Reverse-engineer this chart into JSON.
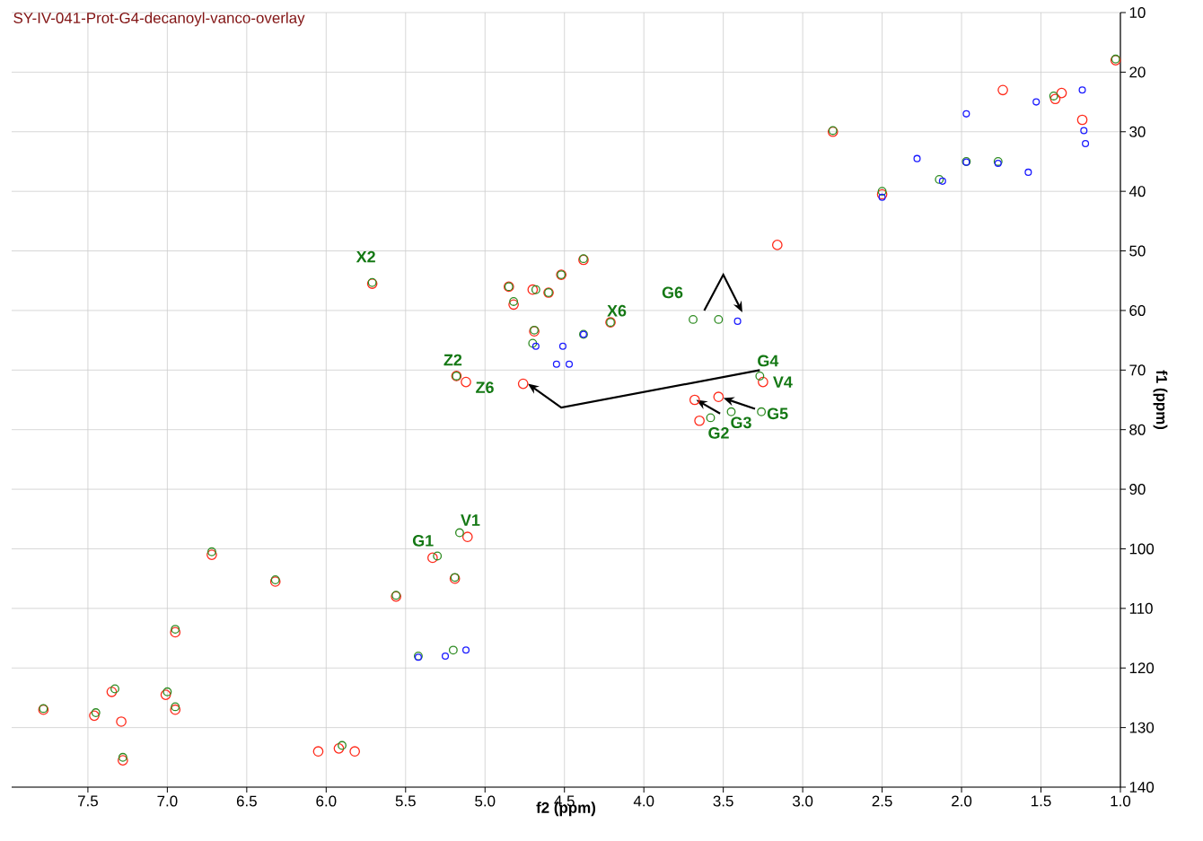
{
  "chart_data": {
    "type": "scatter",
    "title": "SY-IV-041-Prot-G4-decanoyl-vanco-overlay",
    "xlabel": "f2 (ppm)",
    "ylabel": "f1 (ppm)",
    "xlim": [
      7.98,
      1.0
    ],
    "ylim": [
      140,
      10
    ],
    "xticks": [
      7.5,
      {
        "value": 7,
        "label": "7.0"
      },
      6.5,
      {
        "value": 6,
        "label": "6.0"
      },
      5.5,
      {
        "value": 5,
        "label": "5.0"
      },
      4.5,
      {
        "value": 4,
        "label": "4.0"
      },
      3.5,
      {
        "value": 3,
        "label": "3.0"
      },
      2.5,
      {
        "value": 2,
        "label": "2.0"
      },
      1.5,
      {
        "value": 1,
        "label": "1.0"
      }
    ],
    "yticks": [
      10,
      20,
      30,
      40,
      50,
      60,
      70,
      80,
      90,
      100,
      110,
      120,
      130,
      140
    ],
    "grid": true,
    "marker": "circle",
    "series": [
      {
        "color": "#ff2a1a",
        "x": [
          7.78,
          7.46,
          7.35,
          7.29,
          7.28,
          7.01,
          6.95,
          6.95,
          6.72,
          6.32,
          6.05,
          5.92,
          5.82,
          5.56,
          5.71,
          5.33,
          5.19,
          5.11,
          5.18,
          5.12,
          4.76,
          4.85,
          4.82,
          4.7,
          4.6,
          4.52,
          4.38,
          4.69,
          4.21,
          3.68,
          3.53,
          3.65,
          3.25,
          3.16,
          2.81,
          2.5,
          1.74,
          1.41,
          1.37,
          1.24,
          1.03
        ],
        "values": [
          127,
          128,
          124,
          129,
          135.5,
          124.5,
          127,
          114,
          101,
          105.5,
          134,
          133.5,
          134,
          108,
          55.5,
          101.5,
          105,
          98,
          71,
          72,
          72.3,
          56,
          59,
          56.5,
          57,
          54,
          51.5,
          63.5,
          62,
          75,
          74.5,
          78.5,
          72,
          49,
          30,
          40.5,
          23,
          24.5,
          23.5,
          28,
          18
        ]
      },
      {
        "color": "#2e8b22",
        "x": [
          7.78,
          7.45,
          7.33,
          7.28,
          7.0,
          6.95,
          6.95,
          6.72,
          6.32,
          5.9,
          5.56,
          5.71,
          5.3,
          5.19,
          5.16,
          5.18,
          4.85,
          4.82,
          4.68,
          4.6,
          4.52,
          4.38,
          4.69,
          4.7,
          4.38,
          4.21,
          3.69,
          3.53,
          3.58,
          3.45,
          3.27,
          3.26,
          2.81,
          2.5,
          2.14,
          1.97,
          1.77,
          1.42,
          1.03,
          5.42,
          5.2
        ],
        "values": [
          126.8,
          127.5,
          123.5,
          135,
          124,
          113.5,
          126.5,
          100.5,
          105.2,
          133,
          107.8,
          55.3,
          101.2,
          104.8,
          97.3,
          71,
          56,
          58.5,
          56.5,
          57,
          54,
          51.3,
          63.3,
          65.5,
          64,
          62,
          61.5,
          61.5,
          78,
          77,
          71,
          77,
          29.8,
          40,
          38,
          35,
          35,
          24,
          17.8,
          118,
          117
        ]
      },
      {
        "color": "#1a1aff",
        "x": [
          5.42,
          5.25,
          5.12,
          4.68,
          4.55,
          4.47,
          4.38,
          4.51,
          3.41,
          2.28,
          1.97,
          1.77,
          1.58,
          1.53,
          1.24,
          1.23,
          1.22,
          2.12,
          1.97,
          2.5
        ],
        "values": [
          118.2,
          118,
          117,
          66,
          69,
          69,
          64,
          66,
          61.8,
          34.5,
          35.1,
          35.3,
          36.8,
          25,
          23,
          29.8,
          32,
          38.3,
          27,
          41
        ]
      }
    ],
    "annotations": [
      {
        "text": "X2",
        "x": 5.71,
        "y": 55.5
      },
      {
        "text": "X6",
        "x": 4.21,
        "y": 62
      },
      {
        "text": "G6",
        "x": 3.69,
        "y": 61.5
      },
      {
        "text": "G4",
        "x": 3.27,
        "y": 71
      },
      {
        "text": "V4",
        "x": 3.25,
        "y": 72
      },
      {
        "text": "G5",
        "x": 3.26,
        "y": 77
      },
      {
        "text": "G3",
        "x": 3.45,
        "y": 77
      },
      {
        "text": "G2",
        "x": 3.58,
        "y": 78
      },
      {
        "text": "Z2",
        "x": 5.18,
        "y": 71
      },
      {
        "text": "Z6",
        "x": 5.12,
        "y": 72
      },
      {
        "text": "G1",
        "x": 5.3,
        "y": 101.2
      },
      {
        "text": "V1",
        "x": 5.16,
        "y": 97.3
      }
    ]
  }
}
